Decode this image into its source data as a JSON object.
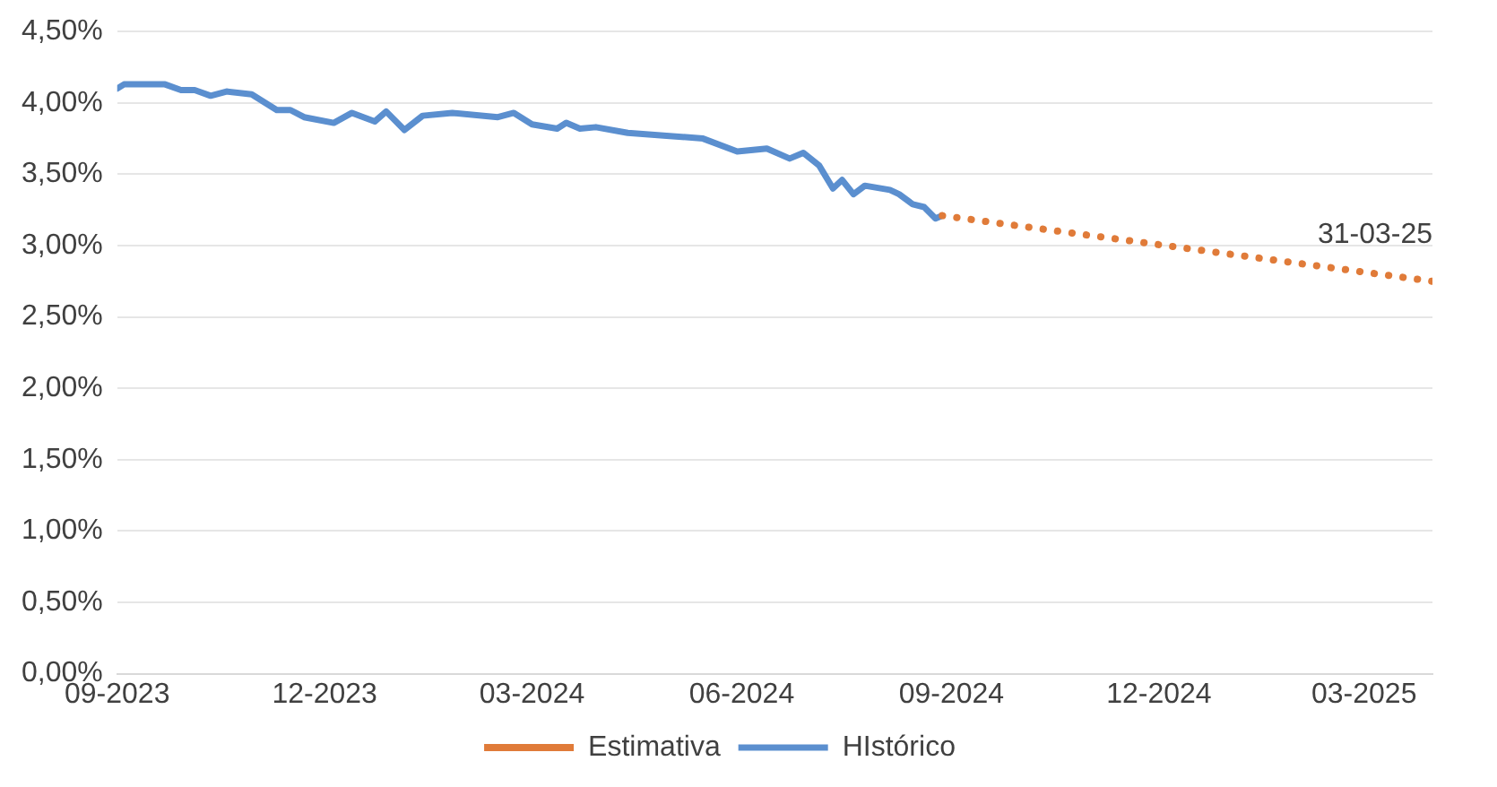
{
  "chart_data": {
    "type": "line",
    "ylim": [
      0,
      4.5
    ],
    "yticks": [
      {
        "value": 0,
        "label": "0,00%"
      },
      {
        "value": 0.5,
        "label": "0,50%"
      },
      {
        "value": 1,
        "label": "1,00%"
      },
      {
        "value": 1.5,
        "label": "1,50%"
      },
      {
        "value": 2,
        "label": "2,00%"
      },
      {
        "value": 2.5,
        "label": "2,50%"
      },
      {
        "value": 3,
        "label": "3,00%"
      },
      {
        "value": 3.5,
        "label": "3,50%"
      },
      {
        "value": 4,
        "label": "4,00%"
      },
      {
        "value": 4.5,
        "label": "4,50%"
      }
    ],
    "xlim": [
      "2023-09-01",
      "2025-03-31"
    ],
    "xticks": [
      {
        "value": "2023-09-01",
        "label": "09-2023"
      },
      {
        "value": "2023-12-01",
        "label": "12-2023"
      },
      {
        "value": "2024-03-01",
        "label": "03-2024"
      },
      {
        "value": "2024-06-01",
        "label": "06-2024"
      },
      {
        "value": "2024-09-01",
        "label": "09-2024"
      },
      {
        "value": "2024-12-01",
        "label": "12-2024"
      },
      {
        "value": "2025-03-01",
        "label": "03-2025"
      }
    ],
    "grid": "y",
    "legend": "bottom",
    "marker": "none",
    "series": [
      {
        "name": "Estimativa",
        "color": "#e07b39",
        "line_style": "dotted",
        "x": [
          "2024-08-28",
          "2025-03-31"
        ],
        "values": [
          3.21,
          2.75
        ]
      },
      {
        "name": "HIstórico",
        "color": "#5b8fcf",
        "line_style": "solid",
        "x": [
          "2023-09-01",
          "2023-09-04",
          "2023-09-22",
          "2023-09-29",
          "2023-10-05",
          "2023-10-12",
          "2023-10-19",
          "2023-10-30",
          "2023-11-10",
          "2023-11-16",
          "2023-11-22",
          "2023-12-05",
          "2023-12-13",
          "2023-12-23",
          "2023-12-28",
          "2024-01-05",
          "2024-01-13",
          "2024-01-26",
          "2024-02-15",
          "2024-02-22",
          "2024-03-01",
          "2024-03-12",
          "2024-03-16",
          "2024-03-22",
          "2024-03-29",
          "2024-04-12",
          "2024-04-29",
          "2024-05-15",
          "2024-05-30",
          "2024-06-12",
          "2024-06-22",
          "2024-06-28",
          "2024-07-05",
          "2024-07-11",
          "2024-07-15",
          "2024-07-20",
          "2024-07-25",
          "2024-08-05",
          "2024-08-09",
          "2024-08-15",
          "2024-08-20",
          "2024-08-25",
          "2024-08-28"
        ],
        "values": [
          4.1,
          4.13,
          4.13,
          4.09,
          4.09,
          4.05,
          4.08,
          4.06,
          3.95,
          3.95,
          3.9,
          3.86,
          3.93,
          3.87,
          3.94,
          3.81,
          3.91,
          3.93,
          3.9,
          3.93,
          3.85,
          3.82,
          3.86,
          3.82,
          3.83,
          3.79,
          3.77,
          3.75,
          3.66,
          3.68,
          3.61,
          3.65,
          3.56,
          3.4,
          3.46,
          3.36,
          3.42,
          3.39,
          3.36,
          3.29,
          3.27,
          3.19,
          3.21
        ]
      }
    ],
    "annotations": [
      {
        "text": "31-03-25",
        "x": "2025-03-31",
        "y": 2.75
      }
    ]
  }
}
